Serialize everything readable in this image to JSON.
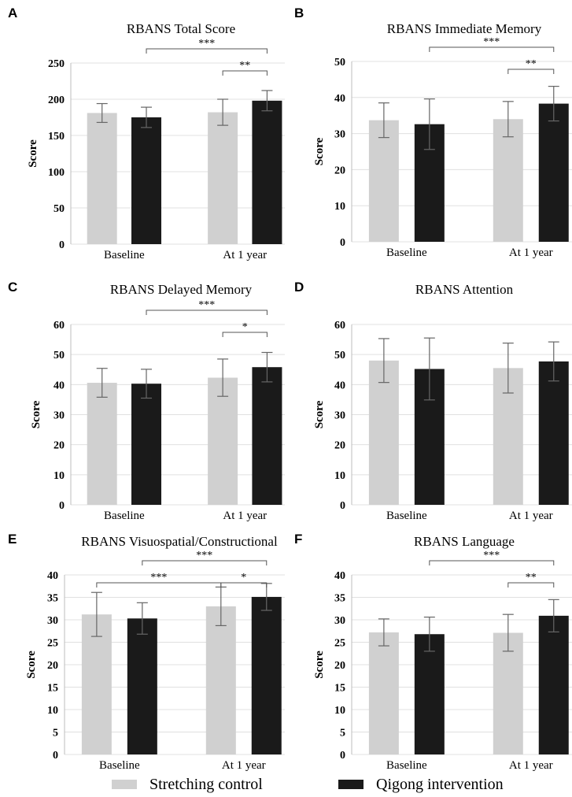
{
  "chart_data": [
    {
      "type": "bar",
      "panel_letter": "A",
      "title": "RBANS Total Score",
      "ylabel": "Score",
      "ylim": [
        0,
        250
      ],
      "yticks": [
        0,
        50,
        100,
        150,
        200,
        250
      ],
      "categories": [
        "Baseline",
        "At 1 year"
      ],
      "series": [
        {
          "name": "Stretching control",
          "values": [
            181,
            182
          ],
          "error": [
            13,
            18
          ]
        },
        {
          "name": "Qigong intervention",
          "values": [
            175,
            198
          ],
          "error": [
            14,
            14
          ]
        }
      ],
      "significance": [
        {
          "from": [
            0,
            1
          ],
          "to": [
            1,
            1
          ],
          "label": "***"
        },
        {
          "from": [
            1,
            0
          ],
          "to": [
            1,
            1
          ],
          "label": "**"
        }
      ]
    },
    {
      "type": "bar",
      "panel_letter": "B",
      "title": "RBANS Immediate Memory",
      "ylabel": "Score",
      "ylim": [
        0,
        50
      ],
      "yticks": [
        0,
        10,
        20,
        30,
        40,
        50
      ],
      "categories": [
        "Baseline",
        "At 1 year"
      ],
      "series": [
        {
          "name": "Stretching control",
          "values": [
            33.7,
            34
          ],
          "error": [
            4.8,
            4.9
          ]
        },
        {
          "name": "Qigong intervention",
          "values": [
            32.6,
            38.3
          ],
          "error": [
            7,
            4.8
          ]
        }
      ],
      "significance": [
        {
          "from": [
            0,
            1
          ],
          "to": [
            1,
            1
          ],
          "label": "***"
        },
        {
          "from": [
            1,
            0
          ],
          "to": [
            1,
            1
          ],
          "label": "**"
        }
      ]
    },
    {
      "type": "bar",
      "panel_letter": "C",
      "title": "RBANS Delayed Memory",
      "ylabel": "Score",
      "ylim": [
        0,
        60
      ],
      "yticks": [
        0,
        10,
        20,
        30,
        40,
        50,
        60
      ],
      "categories": [
        "Baseline",
        "At 1 year"
      ],
      "series": [
        {
          "name": "Stretching control",
          "values": [
            40.6,
            42.3
          ],
          "error": [
            4.8,
            6.2
          ]
        },
        {
          "name": "Qigong intervention",
          "values": [
            40.3,
            45.8
          ],
          "error": [
            4.8,
            4.9
          ]
        }
      ],
      "significance": [
        {
          "from": [
            0,
            1
          ],
          "to": [
            1,
            1
          ],
          "label": "***"
        },
        {
          "from": [
            1,
            0
          ],
          "to": [
            1,
            1
          ],
          "label": "*"
        }
      ]
    },
    {
      "type": "bar",
      "panel_letter": "D",
      "title": "RBANS Attention",
      "ylabel": "Score",
      "ylim": [
        0,
        60
      ],
      "yticks": [
        0,
        10,
        20,
        30,
        40,
        50,
        60
      ],
      "categories": [
        "Baseline",
        "At 1 year"
      ],
      "series": [
        {
          "name": "Stretching control",
          "values": [
            48,
            45.5
          ],
          "error": [
            7.3,
            8.3
          ]
        },
        {
          "name": "Qigong intervention",
          "values": [
            45.2,
            47.7
          ],
          "error": [
            10.3,
            6.5
          ]
        }
      ],
      "significance": []
    },
    {
      "type": "bar",
      "panel_letter": "E",
      "title": "RBANS Visuospatial/Constructional",
      "ylabel": "Score",
      "ylim": [
        0,
        40
      ],
      "yticks": [
        0,
        5,
        10,
        15,
        20,
        25,
        30,
        35,
        40
      ],
      "categories": [
        "Baseline",
        "At 1 year"
      ],
      "series": [
        {
          "name": "Stretching control",
          "values": [
            31.2,
            33
          ],
          "error": [
            4.9,
            4.3
          ]
        },
        {
          "name": "Qigong intervention",
          "values": [
            30.3,
            35.1
          ],
          "error": [
            3.5,
            3
          ]
        }
      ],
      "significance": [
        {
          "from": [
            0,
            1
          ],
          "to": [
            1,
            1
          ],
          "label": "***",
          "level": 2
        },
        {
          "from": [
            0,
            0
          ],
          "to": [
            1,
            0
          ],
          "label": "***",
          "level": 1
        },
        {
          "from": [
            1,
            0
          ],
          "to": [
            1,
            1
          ],
          "label": "*",
          "level": 1
        }
      ]
    },
    {
      "type": "bar",
      "panel_letter": "F",
      "title": "RBANS Language",
      "ylabel": "Score",
      "ylim": [
        0,
        40
      ],
      "yticks": [
        0,
        5,
        10,
        15,
        20,
        25,
        30,
        35,
        40
      ],
      "categories": [
        "Baseline",
        "At 1 year"
      ],
      "series": [
        {
          "name": "Stretching control",
          "values": [
            27.2,
            27.1
          ],
          "error": [
            3,
            4.1
          ]
        },
        {
          "name": "Qigong intervention",
          "values": [
            26.8,
            30.9
          ],
          "error": [
            3.8,
            3.6
          ]
        }
      ],
      "significance": [
        {
          "from": [
            0,
            1
          ],
          "to": [
            1,
            1
          ],
          "label": "***"
        },
        {
          "from": [
            1,
            0
          ],
          "to": [
            1,
            1
          ],
          "label": "**"
        }
      ]
    }
  ],
  "legend": {
    "items": [
      {
        "label": "Stretching control",
        "color": "#d0d0d0"
      },
      {
        "label": "Qigong intervention",
        "color": "#1a1a1a"
      }
    ]
  },
  "colors": {
    "control": "#d0d0d0",
    "intervention": "#1a1a1a",
    "grid": "#e0e0e0"
  }
}
